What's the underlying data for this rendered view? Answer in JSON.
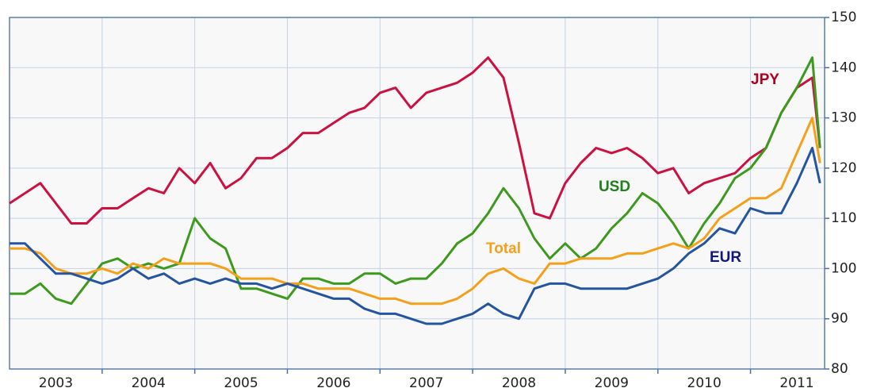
{
  "chart_data": {
    "type": "line",
    "x": [
      2003.0,
      2003.167,
      2003.333,
      2003.5,
      2003.667,
      2003.833,
      2004.0,
      2004.167,
      2004.333,
      2004.5,
      2004.667,
      2004.833,
      2005.0,
      2005.167,
      2005.333,
      2005.5,
      2005.667,
      2005.833,
      2006.0,
      2006.167,
      2006.333,
      2006.5,
      2006.667,
      2006.833,
      2007.0,
      2007.167,
      2007.333,
      2007.5,
      2007.667,
      2007.833,
      2008.0,
      2008.167,
      2008.333,
      2008.5,
      2008.667,
      2008.833,
      2009.0,
      2009.167,
      2009.333,
      2009.5,
      2009.667,
      2009.833,
      2010.0,
      2010.167,
      2010.333,
      2010.5,
      2010.667,
      2010.833,
      2011.0,
      2011.167,
      2011.333,
      2011.5,
      2011.667,
      2011.75
    ],
    "xlim": [
      2003.0,
      2011.8
    ],
    "xticks": [
      {
        "value": 2003.5,
        "label": "2003"
      },
      {
        "value": 2004.5,
        "label": "2004"
      },
      {
        "value": 2005.5,
        "label": "2005"
      },
      {
        "value": 2006.5,
        "label": "2006"
      },
      {
        "value": 2007.5,
        "label": "2007"
      },
      {
        "value": 2008.5,
        "label": "2008"
      },
      {
        "value": 2009.5,
        "label": "2009"
      },
      {
        "value": 2010.5,
        "label": "2010"
      },
      {
        "value": 2011.5,
        "label": "2011"
      }
    ],
    "xgrid": [
      2004,
      2005,
      2006,
      2007,
      2008,
      2009,
      2010,
      2011
    ],
    "ylim": [
      80,
      150
    ],
    "yticks": [
      80,
      90,
      100,
      110,
      120,
      130,
      140,
      150
    ],
    "grid": true,
    "series": [
      {
        "name": "JPY",
        "color": "#cc1040",
        "label_color": "#b0001e",
        "values": [
          113,
          115,
          117,
          113,
          109,
          109,
          112,
          112,
          114,
          116,
          115,
          120,
          117,
          121,
          116,
          118,
          122,
          122,
          124,
          127,
          127,
          129,
          131,
          132,
          135,
          136,
          132,
          135,
          136,
          137,
          139,
          142,
          138,
          125,
          111,
          110,
          117,
          121,
          124,
          123,
          124,
          122,
          119,
          120,
          115,
          117,
          118,
          119,
          122,
          124,
          131,
          136,
          138,
          124
        ]
      },
      {
        "name": "USD",
        "color": "#3c9a1e",
        "label_color": "#1e801e",
        "values": [
          95,
          95,
          97,
          94,
          93,
          97,
          101,
          102,
          100,
          101,
          100,
          101,
          110,
          106,
          104,
          96,
          96,
          95,
          94,
          98,
          98,
          97,
          97,
          99,
          99,
          97,
          98,
          98,
          101,
          105,
          107,
          111,
          116,
          112,
          106,
          102,
          105,
          102,
          104,
          108,
          111,
          115,
          113,
          109,
          104,
          109,
          113,
          118,
          120,
          124,
          131,
          136,
          142,
          124
        ]
      },
      {
        "name": "Total",
        "color": "#f5a01a",
        "label_color": "#f5a01a",
        "values": [
          104,
          104,
          103,
          100,
          99,
          99,
          100,
          99,
          101,
          100,
          102,
          101,
          101,
          101,
          100,
          98,
          98,
          98,
          97,
          97,
          96,
          96,
          96,
          95,
          94,
          94,
          93,
          93,
          93,
          94,
          96,
          99,
          100,
          98,
          97,
          101,
          101,
          102,
          102,
          102,
          103,
          103,
          104,
          105,
          104,
          106,
          110,
          112,
          114,
          114,
          116,
          123,
          130,
          121
        ]
      },
      {
        "name": "EUR",
        "color": "#2455a0",
        "label_color": "#101880",
        "values": [
          105,
          105,
          102,
          99,
          99,
          98,
          97,
          98,
          100,
          98,
          99,
          97,
          98,
          97,
          98,
          97,
          97,
          96,
          97,
          96,
          95,
          94,
          94,
          92,
          91,
          91,
          90,
          89,
          89,
          90,
          91,
          93,
          91,
          90,
          96,
          97,
          97,
          96,
          96,
          96,
          96,
          97,
          98,
          100,
          103,
          105,
          108,
          107,
          112,
          111,
          111,
          117,
          124,
          117
        ]
      }
    ]
  }
}
